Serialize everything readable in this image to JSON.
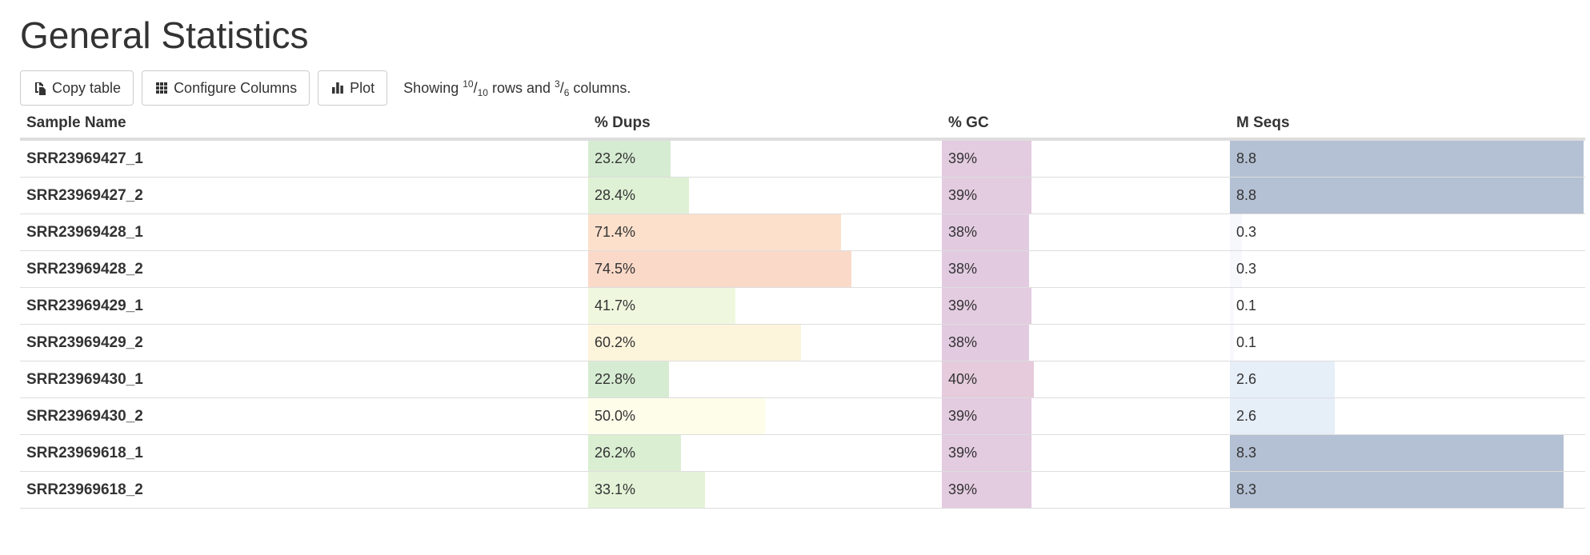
{
  "page": {
    "title": "General Statistics"
  },
  "toolbar": {
    "copy_label": "Copy table",
    "copy_icon": "copy-icon",
    "configure_label": "Configure Columns",
    "configure_icon": "grid-icon",
    "plot_label": "Plot",
    "plot_icon": "bar-chart-icon",
    "showing": {
      "prefix": "Showing ",
      "rows_shown": "10",
      "rows_total": "10",
      "middle": " rows and ",
      "cols_shown": "3",
      "cols_total": "6",
      "suffix": " columns."
    }
  },
  "table": {
    "headers": {
      "sample": "Sample Name",
      "dups": "% Dups",
      "gc": "% GC",
      "mseqs": "M Seqs"
    },
    "rows": [
      {
        "sample": "SRR23969427_1",
        "dups": "23.2%",
        "dups_value": 23.2,
        "dups_color": "#d6ecd2",
        "gc": "39%",
        "gc_value": 39,
        "gc_color": "#e3cbe0",
        "mseqs": "8.8",
        "mseqs_value": 8.8,
        "mseqs_color": "#b4c0d3"
      },
      {
        "sample": "SRR23969427_2",
        "dups": "28.4%",
        "dups_value": 28.4,
        "dups_color": "#dff1d4",
        "gc": "39%",
        "gc_value": 39,
        "gc_color": "#e3cbe0",
        "mseqs": "8.8",
        "mseqs_value": 8.8,
        "mseqs_color": "#b4c0d3"
      },
      {
        "sample": "SRR23969428_1",
        "dups": "71.4%",
        "dups_value": 71.4,
        "dups_color": "#fce0cc",
        "gc": "38%",
        "gc_value": 38,
        "gc_color": "#e2cbe1",
        "mseqs": "0.3",
        "mseqs_value": 0.3,
        "mseqs_color": "#f6f8fc"
      },
      {
        "sample": "SRR23969428_2",
        "dups": "74.5%",
        "dups_value": 74.5,
        "dups_color": "#fbd9c8",
        "gc": "38%",
        "gc_value": 38,
        "gc_color": "#e2cbe1",
        "mseqs": "0.3",
        "mseqs_value": 0.3,
        "mseqs_color": "#f6f8fc"
      },
      {
        "sample": "SRR23969429_1",
        "dups": "41.7%",
        "dups_value": 41.7,
        "dups_color": "#eff8de",
        "gc": "39%",
        "gc_value": 39,
        "gc_color": "#e3cbe0",
        "mseqs": "0.1",
        "mseqs_value": 0.1,
        "mseqs_color": "#f8f9fd"
      },
      {
        "sample": "SRR23969429_2",
        "dups": "60.2%",
        "dups_value": 60.2,
        "dups_color": "#fdf4dc",
        "gc": "38%",
        "gc_value": 38,
        "gc_color": "#e2cbe1",
        "mseqs": "0.1",
        "mseqs_value": 0.1,
        "mseqs_color": "#f8f9fd"
      },
      {
        "sample": "SRR23969430_1",
        "dups": "22.8%",
        "dups_value": 22.8,
        "dups_color": "#d6ecd2",
        "gc": "40%",
        "gc_value": 40,
        "gc_color": "#e5cbdb",
        "mseqs": "2.6",
        "mseqs_value": 2.6,
        "mseqs_color": "#e6eef8"
      },
      {
        "sample": "SRR23969430_2",
        "dups": "50.0%",
        "dups_value": 50.0,
        "dups_color": "#fdfde9",
        "gc": "39%",
        "gc_value": 39,
        "gc_color": "#e3cbe0",
        "mseqs": "2.6",
        "mseqs_value": 2.6,
        "mseqs_color": "#e6eef8"
      },
      {
        "sample": "SRR23969618_1",
        "dups": "26.2%",
        "dups_value": 26.2,
        "dups_color": "#daeed2",
        "gc": "39%",
        "gc_value": 39,
        "gc_color": "#e3cbe0",
        "mseqs": "8.3",
        "mseqs_value": 8.3,
        "mseqs_color": "#b4c0d3"
      },
      {
        "sample": "SRR23969618_2",
        "dups": "33.1%",
        "dups_value": 33.1,
        "dups_color": "#e4f3d7",
        "gc": "39%",
        "gc_value": 39,
        "gc_color": "#e3cbe0",
        "mseqs": "8.3",
        "mseqs_value": 8.3,
        "mseqs_color": "#b4c0d3"
      }
    ]
  }
}
